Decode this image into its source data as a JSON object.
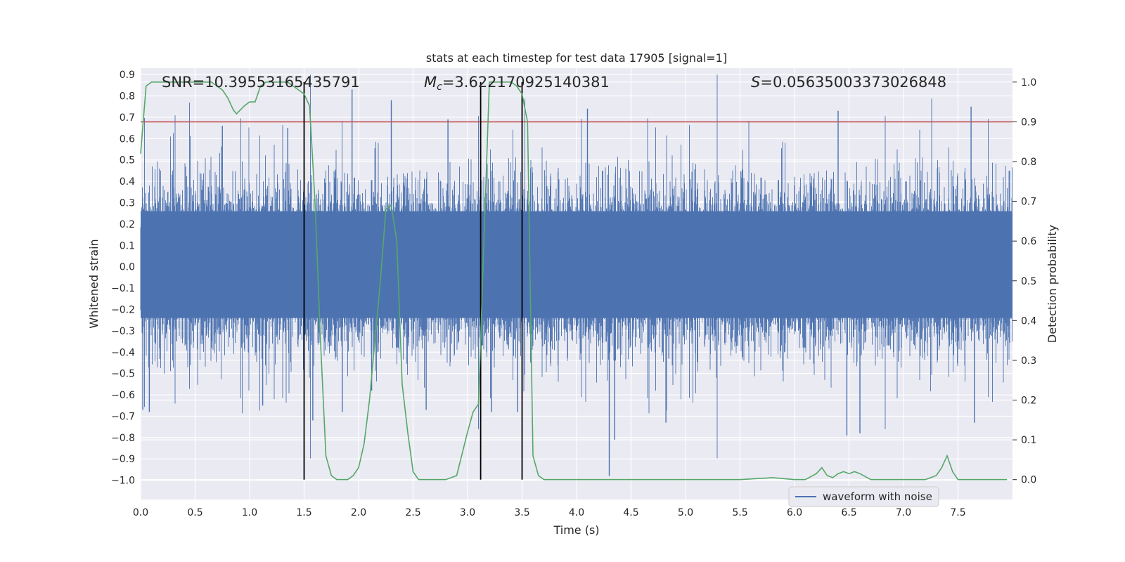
{
  "chart_data": {
    "type": "line",
    "title": "stats at each timestep for test data 17905 [signal=1]",
    "xlabel": "Time (s)",
    "ylabel": "Whitened strain",
    "y2label": "Detection probability",
    "xlim": [
      0.0,
      8.0
    ],
    "ylim": [
      -1.09,
      0.93
    ],
    "y2lim": [
      -0.05,
      1.035
    ],
    "grid": true,
    "x_ticks": [
      "0.0",
      "0.5",
      "1.0",
      "1.5",
      "2.0",
      "2.5",
      "3.0",
      "3.5",
      "4.0",
      "4.5",
      "5.0",
      "5.5",
      "6.0",
      "6.5",
      "7.0",
      "7.5"
    ],
    "y_ticks": [
      "0.9",
      "0.8",
      "0.7",
      "0.6",
      "0.5",
      "0.4",
      "0.3",
      "0.2",
      "0.1",
      "0.0",
      "−0.1",
      "−0.2",
      "−0.3",
      "−0.4",
      "−0.5",
      "−0.6",
      "−0.7",
      "−0.8",
      "−0.9",
      "−1.0"
    ],
    "y2_ticks": [
      "1.0",
      "0.9",
      "0.8",
      "0.7",
      "0.6",
      "0.5",
      "0.4",
      "0.3",
      "0.2",
      "0.1",
      "0.0"
    ],
    "annotations": {
      "snr": "SNR=10.39553165435791",
      "mc_prefix": "M",
      "mc_sub": "c",
      "mc_value": "=3.622170925140381",
      "s_prefix": "S",
      "s_value": "=0.05635003373026848"
    },
    "legend": {
      "placement": "lower-right",
      "entries": [
        "waveform with noise"
      ]
    },
    "colors": {
      "waveform": "#4c72b0",
      "probability": "#55a868",
      "threshold": "#c44e52",
      "markers": "#000000",
      "plot_bg": "#eaeaf2",
      "grid": "#ffffff"
    },
    "threshold": 0.9,
    "vertical_lines": [
      1.5,
      3.12,
      3.5
    ],
    "series": [
      {
        "name": "waveform with noise",
        "axis": "left",
        "envelope_note": "dense noisy strain, bulk within about ±0.3, peaks to about ±0.85",
        "spikes": [
          {
            "x": 0.02,
            "y": -0.67
          },
          {
            "x": 0.08,
            "y": -0.68
          },
          {
            "x": 0.75,
            "y": 0.66
          },
          {
            "x": 1.12,
            "y": -0.65
          },
          {
            "x": 1.35,
            "y": 0.65
          },
          {
            "x": 1.58,
            "y": -0.72
          },
          {
            "x": 1.85,
            "y": -0.68
          },
          {
            "x": 1.94,
            "y": 0.83
          },
          {
            "x": 2.12,
            "y": -0.58
          },
          {
            "x": 2.3,
            "y": 0.78
          },
          {
            "x": 2.62,
            "y": -0.67
          },
          {
            "x": 2.82,
            "y": 0.69
          },
          {
            "x": 3.22,
            "y": -0.68
          },
          {
            "x": 3.46,
            "y": -0.68
          },
          {
            "x": 4.1,
            "y": 0.74
          },
          {
            "x": 4.3,
            "y": -0.98
          },
          {
            "x": 4.35,
            "y": -0.81
          },
          {
            "x": 4.82,
            "y": -0.73
          },
          {
            "x": 6.4,
            "y": 0.73
          },
          {
            "x": 6.48,
            "y": -0.79
          },
          {
            "x": 6.6,
            "y": -0.78
          },
          {
            "x": 7.62,
            "y": 0.75
          },
          {
            "x": 7.65,
            "y": -0.73
          }
        ]
      },
      {
        "name": "",
        "axis": "right",
        "x": [
          0.0,
          0.05,
          0.1,
          0.2,
          0.3,
          0.4,
          0.5,
          0.6,
          0.65,
          0.7,
          0.75,
          0.8,
          0.85,
          0.88,
          0.95,
          1.0,
          1.05,
          1.1,
          1.15,
          1.2,
          1.25,
          1.3,
          1.35,
          1.4,
          1.45,
          1.5,
          1.55,
          1.6,
          1.65,
          1.7,
          1.75,
          1.8,
          1.85,
          1.9,
          1.95,
          2.0,
          2.05,
          2.1,
          2.15,
          2.2,
          2.25,
          2.3,
          2.35,
          2.4,
          2.45,
          2.5,
          2.55,
          2.6,
          2.7,
          2.8,
          2.9,
          3.0,
          3.05,
          3.1,
          3.15,
          3.2,
          3.25,
          3.3,
          3.35,
          3.4,
          3.45,
          3.5,
          3.55,
          3.6,
          3.65,
          3.7,
          3.8,
          4.0,
          4.2,
          4.3,
          4.5,
          5.0,
          5.5,
          5.8,
          6.0,
          6.1,
          6.2,
          6.25,
          6.3,
          6.35,
          6.4,
          6.45,
          6.5,
          6.55,
          6.6,
          6.7,
          7.0,
          7.2,
          7.3,
          7.35,
          7.4,
          7.45,
          7.5,
          7.55,
          7.6,
          7.7,
          7.8,
          7.95
        ],
        "y": [
          0.82,
          0.99,
          1.0,
          1.0,
          1.0,
          1.0,
          1.0,
          1.0,
          1.0,
          0.99,
          0.98,
          0.96,
          0.93,
          0.92,
          0.94,
          0.95,
          0.95,
          0.99,
          1.0,
          1.0,
          1.0,
          1.0,
          1.0,
          0.99,
          0.98,
          0.97,
          0.94,
          0.7,
          0.35,
          0.06,
          0.01,
          0.0,
          0.0,
          0.0,
          0.01,
          0.03,
          0.09,
          0.2,
          0.35,
          0.5,
          0.68,
          0.69,
          0.6,
          0.24,
          0.12,
          0.02,
          0.0,
          0.0,
          0.0,
          0.0,
          0.01,
          0.12,
          0.17,
          0.19,
          0.6,
          1.0,
          1.0,
          1.0,
          1.0,
          1.0,
          0.99,
          0.97,
          0.9,
          0.06,
          0.01,
          0.0,
          0.0,
          0.0,
          0.0,
          0.0,
          0.0,
          0.0,
          0.0,
          0.005,
          0.0,
          0.0,
          0.015,
          0.03,
          0.01,
          0.005,
          0.015,
          0.02,
          0.015,
          0.02,
          0.015,
          0.0,
          0.0,
          0.0,
          0.01,
          0.03,
          0.06,
          0.02,
          0.0,
          0.0,
          0.0,
          0.0,
          0.0,
          0.0
        ]
      }
    ]
  }
}
